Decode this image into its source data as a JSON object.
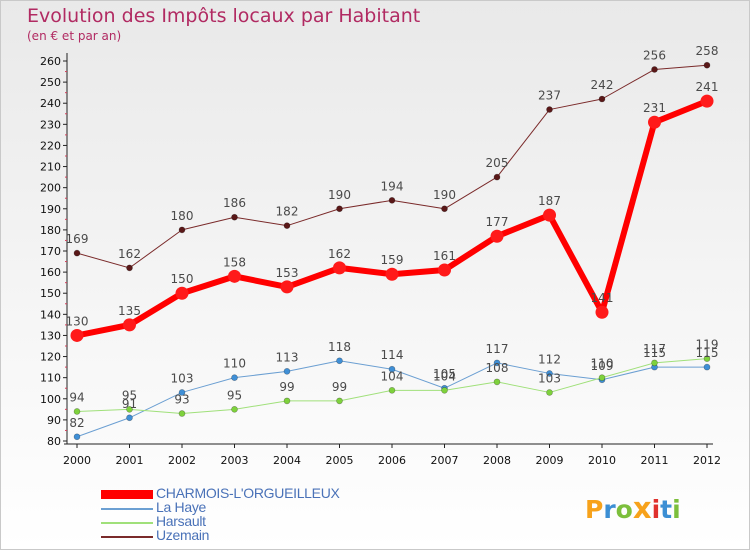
{
  "title": "Evolution des Impôts locaux par Habitant",
  "subtitle": "(en € et par an)",
  "logo": {
    "text": "Proxiti",
    "colors": [
      "#f7a21b",
      "#3c8fd4",
      "#7cbf3c",
      "#f7a21b",
      "#e0312d",
      "#3c8fd4",
      "#7cbf3c"
    ]
  },
  "chart_data": {
    "type": "line",
    "x": [
      "2000",
      "2001",
      "2002",
      "2003",
      "2004",
      "2005",
      "2006",
      "2007",
      "2008",
      "2009",
      "2010",
      "2011",
      "2012"
    ],
    "ylim": [
      80,
      260
    ],
    "yticks": [
      80,
      90,
      100,
      110,
      120,
      130,
      140,
      150,
      160,
      170,
      180,
      190,
      200,
      210,
      220,
      230,
      240,
      250,
      260
    ],
    "grid": false,
    "legend": "bottom-left",
    "series": [
      {
        "name": "CHARMOIS-L'ORGUEILLEUX",
        "color": "#ff0000",
        "marker": "#ff1a1a",
        "width": 6,
        "values": [
          130,
          135,
          150,
          158,
          153,
          162,
          159,
          161,
          177,
          187,
          141,
          231,
          241
        ]
      },
      {
        "name": "La Haye",
        "color": "#6b9fd2",
        "marker": "#3f8fd6",
        "width": 1,
        "values": [
          82,
          91,
          103,
          110,
          113,
          118,
          114,
          105,
          117,
          112,
          109,
          115,
          115
        ]
      },
      {
        "name": "Harsault",
        "color": "#a0e07a",
        "marker": "#7ed13c",
        "width": 1,
        "values": [
          94,
          95,
          93,
          95,
          99,
          99,
          104,
          104,
          108,
          103,
          110,
          117,
          119
        ]
      },
      {
        "name": "Uzemain",
        "color": "#7a2a2a",
        "marker": "#5a1818",
        "width": 1,
        "values": [
          169,
          162,
          180,
          186,
          182,
          190,
          194,
          190,
          205,
          237,
          242,
          256,
          258
        ]
      }
    ]
  }
}
